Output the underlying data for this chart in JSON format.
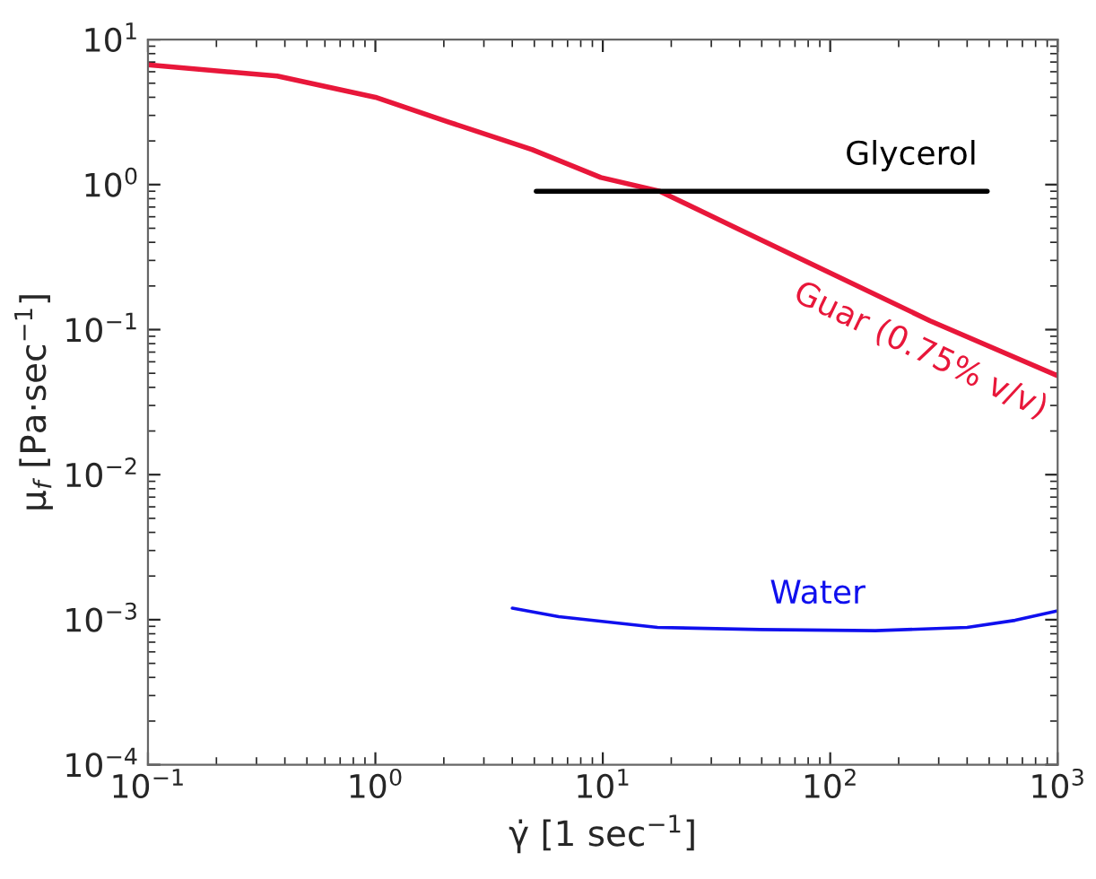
{
  "chart_data": {
    "type": "line",
    "xlabel": "γ̇ [1 sec$^{−1}$]",
    "ylabel": "μ$_{f}$ [Pa·sec$^{−1}$]",
    "log": "xy",
    "grid": false,
    "legend": false,
    "marker": "none",
    "line_style": "solid",
    "xlim": [
      0.1,
      1000
    ],
    "ylim": [
      0.0001,
      10
    ],
    "xticks": [
      {
        "value": 0.1,
        "label": "10$^{−1}$"
      },
      {
        "value": 1,
        "label": "10$^{0}$"
      },
      {
        "value": 10,
        "label": "10$^{1}$"
      },
      {
        "value": 100,
        "label": "10$^{2}$"
      },
      {
        "value": 1000,
        "label": "10$^{3}$"
      }
    ],
    "yticks": [
      {
        "value": 0.0001,
        "label": "10$^{−4}$"
      },
      {
        "value": 0.001,
        "label": "10$^{−3}$"
      },
      {
        "value": 0.01,
        "label": "10$^{−2}$"
      },
      {
        "value": 0.1,
        "label": "10$^{−1}$"
      },
      {
        "value": 1,
        "label": "10$^{0}$"
      },
      {
        "value": 10,
        "label": "10$^{1}$"
      }
    ],
    "series": [
      {
        "name": "Guar (0.75% v/v)",
        "color": "#e8173a",
        "x": [
          0.1,
          0.37,
          1.0,
          2.1,
          4.9,
          9.8,
          17.8,
          35,
          98,
          275,
          1000
        ],
        "values": [
          6.7,
          5.6,
          4.0,
          2.7,
          1.74,
          1.12,
          0.9,
          0.54,
          0.25,
          0.115,
          0.048
        ]
      },
      {
        "name": "Glycerol",
        "color": "#000000",
        "x": [
          5.1,
          490
        ],
        "values": [
          0.9,
          0.9
        ]
      },
      {
        "name": "Water",
        "color": "#1010ee",
        "x": [
          4.0,
          6.4,
          17.4,
          49,
          158,
          400,
          650,
          1000
        ],
        "values": [
          0.0012,
          0.00105,
          0.000885,
          0.000855,
          0.00084,
          0.000885,
          0.00099,
          0.00115
        ]
      }
    ]
  }
}
